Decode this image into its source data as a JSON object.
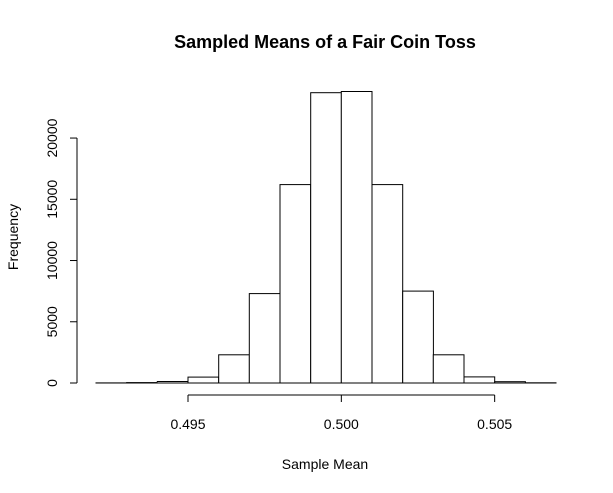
{
  "chart_data": {
    "type": "bar",
    "title": "Sampled Means of a Fair Coin Toss",
    "xlabel": "Sample Mean",
    "ylabel": "Frequency",
    "bin_edges": [
      0.492,
      0.493,
      0.494,
      0.495,
      0.496,
      0.497,
      0.498,
      0.499,
      0.5,
      0.501,
      0.502,
      0.503,
      0.504,
      0.505,
      0.506,
      0.507
    ],
    "values": [
      10,
      30,
      120,
      480,
      2300,
      7300,
      16200,
      23700,
      23800,
      16200,
      7500,
      2300,
      500,
      110,
      20
    ],
    "xlim": [
      0.492,
      0.507
    ],
    "ylim": [
      0,
      24000
    ],
    "x_ticks": [
      0.495,
      0.5,
      0.505
    ],
    "x_tick_labels": [
      "0.495",
      "0.500",
      "0.505"
    ],
    "y_ticks": [
      0,
      5000,
      10000,
      15000,
      20000
    ],
    "y_tick_labels": [
      "0",
      "5000",
      "10000",
      "15000",
      "20000"
    ],
    "grid": false,
    "colors": {
      "bar_fill": "#ffffff",
      "bar_stroke": "#000000"
    }
  }
}
